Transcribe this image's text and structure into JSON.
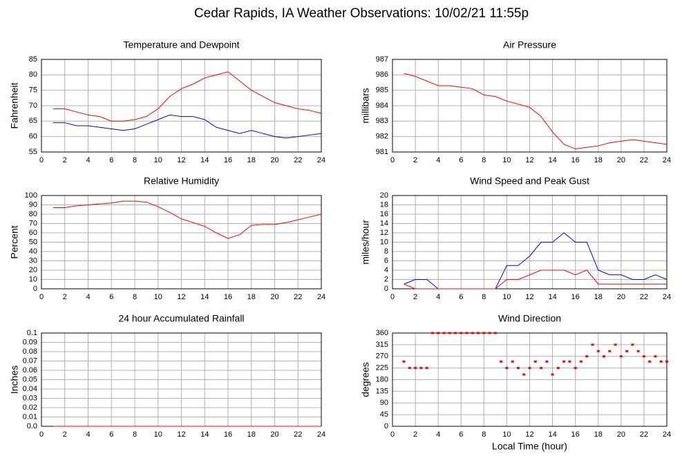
{
  "title": "Cedar Rapids, IA Weather Observations: 10/02/21 11:55p",
  "chart_data": [
    {
      "type": "line",
      "title": "Temperature and Dewpoint",
      "ylabel": "Fahrenheit",
      "grid": true,
      "x": [
        1,
        2,
        3,
        4,
        5,
        6,
        7,
        8,
        9,
        10,
        11,
        12,
        13,
        14,
        15,
        16,
        17,
        18,
        19,
        20,
        21,
        22,
        23,
        24
      ],
      "series": [
        {
          "color": "#ff0000",
          "values": [
            69,
            69,
            68,
            67,
            66.5,
            65,
            65,
            65.5,
            66.5,
            69,
            73,
            75.5,
            77,
            79,
            80,
            81,
            78,
            75,
            73,
            71,
            70,
            69,
            68.5,
            67.5
          ]
        },
        {
          "color": "#0000ff",
          "values": [
            64.5,
            64.5,
            63.5,
            63.5,
            63,
            62.5,
            62,
            62.5,
            64,
            65.5,
            67,
            66.5,
            66.5,
            65.5,
            63,
            62,
            61,
            62,
            61,
            60,
            59.5,
            60,
            60.5,
            61
          ]
        }
      ],
      "xlim": [
        0,
        24
      ],
      "xticks": [
        0,
        2,
        4,
        6,
        8,
        10,
        12,
        14,
        16,
        18,
        20,
        22,
        24
      ],
      "ylim": [
        55,
        85
      ],
      "yticks": [
        55,
        60,
        65,
        70,
        75,
        80,
        85
      ]
    },
    {
      "type": "line",
      "title": "Air Pressure",
      "ylabel": "millibars",
      "grid": true,
      "x": [
        1,
        2,
        3,
        4,
        5,
        6,
        7,
        8,
        9,
        10,
        11,
        12,
        13,
        14,
        15,
        16,
        17,
        18,
        19,
        20,
        21,
        22,
        23,
        24
      ],
      "series": [
        {
          "color": "#ff0000",
          "values": [
            986.1,
            985.9,
            985.6,
            985.3,
            985.3,
            985.2,
            985.1,
            984.7,
            984.6,
            984.3,
            984.1,
            983.9,
            983.3,
            982.3,
            981.5,
            981.2,
            981.3,
            981.4,
            981.6,
            981.7,
            981.8,
            981.7,
            981.6,
            981.5
          ]
        }
      ],
      "xlim": [
        0,
        24
      ],
      "xticks": [
        0,
        2,
        4,
        6,
        8,
        10,
        12,
        14,
        16,
        18,
        20,
        22,
        24
      ],
      "ylim": [
        981,
        987
      ],
      "yticks": [
        981,
        982,
        983,
        984,
        985,
        986,
        987
      ]
    },
    {
      "type": "line",
      "title": "Relative Humidity",
      "ylabel": "Percent",
      "grid": true,
      "x": [
        1,
        2,
        3,
        4,
        5,
        6,
        7,
        8,
        9,
        10,
        11,
        12,
        13,
        14,
        15,
        16,
        17,
        18,
        19,
        20,
        21,
        22,
        23,
        24
      ],
      "series": [
        {
          "color": "#ff0000",
          "values": [
            87,
            87,
            89,
            90,
            91,
            92,
            94,
            94,
            93,
            88,
            82,
            75,
            71,
            67,
            60,
            54,
            58,
            68,
            69,
            69,
            71,
            74,
            77,
            80
          ]
        }
      ],
      "xlim": [
        0,
        24
      ],
      "xticks": [
        0,
        2,
        4,
        6,
        8,
        10,
        12,
        14,
        16,
        18,
        20,
        22,
        24
      ],
      "ylim": [
        0,
        100
      ],
      "yticks": [
        0,
        10,
        20,
        30,
        40,
        50,
        60,
        70,
        80,
        90,
        100
      ]
    },
    {
      "type": "line",
      "title": "Wind Speed and Peak Gust",
      "ylabel": "miles/hour",
      "grid": true,
      "x": [
        1,
        2,
        3,
        4,
        5,
        6,
        7,
        8,
        9,
        10,
        11,
        12,
        13,
        14,
        15,
        16,
        17,
        18,
        19,
        20,
        21,
        22,
        23,
        24
      ],
      "series": [
        {
          "color": "#0000ff",
          "values": [
            1,
            2,
            2,
            0,
            0,
            0,
            0,
            0,
            0,
            5,
            5,
            7,
            10,
            10,
            12,
            10,
            10,
            4,
            3,
            3,
            2,
            2,
            3,
            2
          ]
        },
        {
          "color": "#ff0000",
          "values": [
            1,
            0,
            0,
            0,
            0,
            0,
            0,
            0,
            0,
            2,
            2,
            3,
            4,
            4,
            4,
            3,
            4,
            1,
            1,
            1,
            1,
            1,
            1,
            1
          ]
        }
      ],
      "xlim": [
        0,
        24
      ],
      "xticks": [
        0,
        2,
        4,
        6,
        8,
        10,
        12,
        14,
        16,
        18,
        20,
        22,
        24
      ],
      "ylim": [
        0,
        20
      ],
      "yticks": [
        0,
        2,
        4,
        6,
        8,
        10,
        12,
        14,
        16,
        18,
        20
      ]
    },
    {
      "type": "line",
      "title": "24 hour Accumulated Rainfall",
      "ylabel": "Inches",
      "grid": true,
      "x": [
        1,
        24
      ],
      "series": [
        {
          "color": "#ff0000",
          "values": [
            0,
            0
          ]
        }
      ],
      "xlim": [
        0,
        24
      ],
      "xticks": [
        0,
        2,
        4,
        6,
        8,
        10,
        12,
        14,
        16,
        18,
        20,
        22,
        24
      ],
      "ylim": [
        0,
        0.1
      ],
      "yticks": [
        {
          "value": 0,
          "label": "0.0"
        },
        0.01,
        0.02,
        0.03,
        0.04,
        0.05,
        0.06,
        0.07,
        0.08,
        0.09,
        {
          "value": 0.1,
          "label": "0.1"
        }
      ]
    },
    {
      "type": "scatter",
      "title": "Wind Direction",
      "ylabel": "degrees",
      "xlabel": "Local Time (hour)",
      "grid": true,
      "color": "#ff0000",
      "x": [
        1,
        1.5,
        2,
        2.5,
        3,
        3.5,
        4,
        4.5,
        5,
        5.5,
        6,
        6.5,
        7,
        7.5,
        8,
        8.5,
        9,
        9.5,
        10,
        10.5,
        11,
        11.5,
        12,
        12.5,
        13,
        13.5,
        14,
        14.5,
        15,
        15.5,
        16,
        16.5,
        17,
        17.5,
        18,
        18.5,
        19,
        19.5,
        20,
        20.5,
        21,
        21.5,
        22,
        22.5,
        23,
        23.5,
        24
      ],
      "values": [
        250,
        225,
        225,
        225,
        225,
        360,
        360,
        360,
        360,
        360,
        360,
        360,
        360,
        360,
        360,
        360,
        360,
        250,
        225,
        250,
        225,
        200,
        225,
        250,
        225,
        250,
        200,
        225,
        250,
        250,
        225,
        250,
        270,
        315,
        290,
        270,
        290,
        315,
        270,
        290,
        315,
        290,
        270,
        250,
        270,
        250,
        250
      ],
      "xlim": [
        0,
        24
      ],
      "xticks": [
        0,
        2,
        4,
        6,
        8,
        10,
        12,
        14,
        16,
        18,
        20,
        22,
        24
      ],
      "ylim": [
        0,
        360
      ],
      "yticks": [
        0,
        45,
        90,
        135,
        180,
        225,
        270,
        315,
        360
      ]
    }
  ]
}
